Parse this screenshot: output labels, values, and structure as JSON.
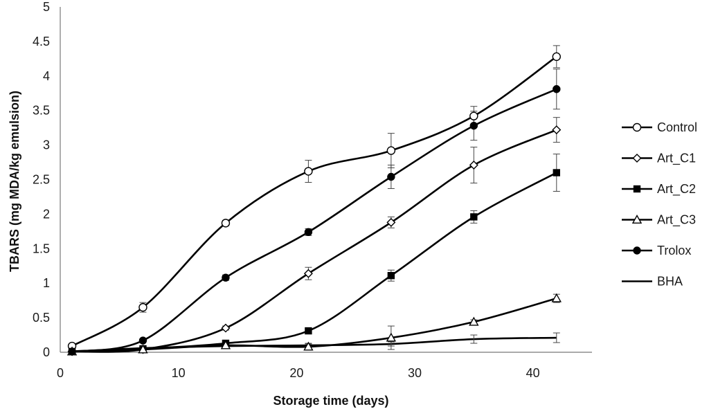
{
  "chart_data": {
    "type": "line",
    "xlabel": "Storage time (days)",
    "ylabel": "TBARS (mg MDA/kg emulsion)",
    "xlim": [
      0,
      45
    ],
    "ylim": [
      0,
      5
    ],
    "xticks": [
      "0",
      "10",
      "20",
      "30",
      "40"
    ],
    "xtick_values": [
      0,
      10,
      20,
      30,
      40
    ],
    "yticks": [
      "0",
      "0.5",
      "1",
      "1.5",
      "2",
      "2.5",
      "3",
      "3.5",
      "4",
      "4.5",
      "5"
    ],
    "ytick_values": [
      0,
      0.5,
      1,
      1.5,
      2,
      2.5,
      3,
      3.5,
      4,
      4.5,
      5
    ],
    "grid": false,
    "legend_position": "right",
    "x": [
      1,
      7,
      14,
      21,
      28,
      35,
      42
    ],
    "series": [
      {
        "name": "Control",
        "marker": "open-circle",
        "values": [
          0.09,
          0.65,
          1.87,
          2.62,
          2.92,
          3.42,
          4.28
        ],
        "errors": [
          0.02,
          0.07,
          0.04,
          0.16,
          0.25,
          0.14,
          0.16
        ]
      },
      {
        "name": "Art_C1",
        "marker": "open-diamond",
        "values": [
          0.01,
          0.04,
          0.35,
          1.14,
          1.88,
          2.71,
          3.22
        ],
        "errors": [
          0.01,
          0.01,
          0.03,
          0.09,
          0.08,
          0.26,
          0.18
        ]
      },
      {
        "name": "Art_C2",
        "marker": "filled-square",
        "values": [
          0.01,
          0.05,
          0.13,
          0.31,
          1.11,
          1.96,
          2.6
        ],
        "errors": [
          0.01,
          0.01,
          0.02,
          0.03,
          0.08,
          0.09,
          0.27
        ]
      },
      {
        "name": "Art_C3",
        "marker": "open-triangle",
        "values": [
          0.01,
          0.04,
          0.1,
          0.08,
          0.21,
          0.44,
          0.78
        ],
        "errors": [
          0.01,
          0.01,
          0.02,
          0.05,
          0.17,
          0.03,
          0.06
        ]
      },
      {
        "name": "Trolox",
        "marker": "filled-circle",
        "values": [
          0.01,
          0.17,
          1.08,
          1.74,
          2.54,
          3.28,
          3.81
        ],
        "errors": [
          0.01,
          0.01,
          0.04,
          0.05,
          0.17,
          0.21,
          0.29
        ]
      },
      {
        "name": "BHA",
        "marker": "none",
        "values": [
          0.01,
          0.06,
          0.09,
          0.1,
          0.12,
          0.19,
          0.21
        ],
        "errors": [
          0.01,
          0.01,
          0.01,
          0.02,
          0.03,
          0.06,
          0.07
        ]
      }
    ]
  }
}
